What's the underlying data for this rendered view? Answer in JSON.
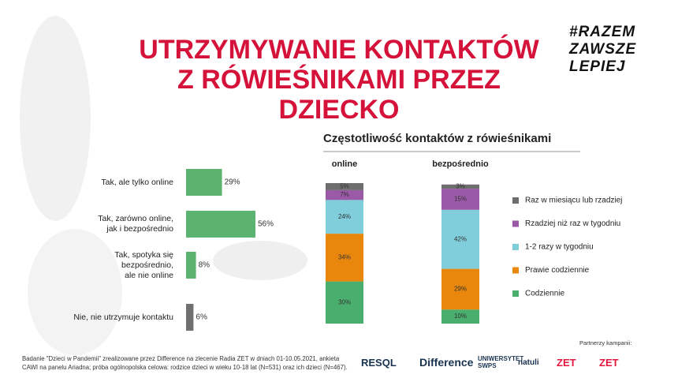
{
  "title": "UTRZYMYWANIE KONTAKTÓW\nZ RÓWIEŚNIKAMI PRZEZ\nDZIECKO",
  "hashtag": "#RAZEM\nZAWSZE\nLEPIEJ",
  "footnote": "Badanie \"Dzieci w Pandemii\" zrealizowane przez Difference na zlecenie Radia ZET w dniach 01-10.05.2021, ankieta\nCAWI na panelu Ariadna; próba ogólnopolska celowa: rodzice dzieci w wieku 10-18 lat (N=531) oraz ich dzieci (N=467).",
  "partners": {
    "label": "Partnerzy kampanii:",
    "logos": [
      "RESQL",
      "Difference",
      "UNIWERSYTET\nSWPS",
      "natuli",
      "ZET",
      "ZET"
    ]
  },
  "chart_data": [
    {
      "type": "hbar",
      "categories": [
        "Tak, ale tylko online",
        "Tak, zarówno online,\njak i bezpośrednio",
        "Tak, spotyka się\nbezpośrednio,\nale nie online",
        "Nie, nie utrzymuje kontaktu"
      ],
      "values": [
        29,
        56,
        8,
        6
      ],
      "value_labels": [
        "29%",
        "56%",
        "8%",
        "6%"
      ],
      "colors": [
        "#5cb370",
        "#5cb370",
        "#5cb370",
        "#707070"
      ]
    },
    {
      "type": "stacked_bar",
      "title": "Częstotliwość kontaktów z rówieśnikami",
      "categories": [
        "online",
        "bezpośrednio"
      ],
      "ylim": [
        0,
        100
      ],
      "series": [
        {
          "name": "Codziennie",
          "color": "#4aaf6e",
          "values": [
            30,
            10
          ],
          "value_labels": [
            "30%",
            "10%"
          ]
        },
        {
          "name": "Prawie codziennie",
          "color": "#e8870c",
          "values": [
            34,
            29
          ],
          "value_labels": [
            "34%",
            "29%"
          ]
        },
        {
          "name": "1-2 razy w tygodniu",
          "color": "#80cedb",
          "values": [
            24,
            42
          ],
          "value_labels": [
            "24%",
            "42%"
          ]
        },
        {
          "name": "Rzadziej niż raz w tygodniu",
          "color": "#9a5aa8",
          "values": [
            7,
            15
          ],
          "value_labels": [
            "7%",
            "15%"
          ]
        },
        {
          "name": "Raz w miesiącu lub rzadziej",
          "color": "#6e6e6e",
          "values": [
            5,
            3
          ],
          "value_labels": [
            "5%",
            "3%"
          ]
        }
      ]
    }
  ]
}
